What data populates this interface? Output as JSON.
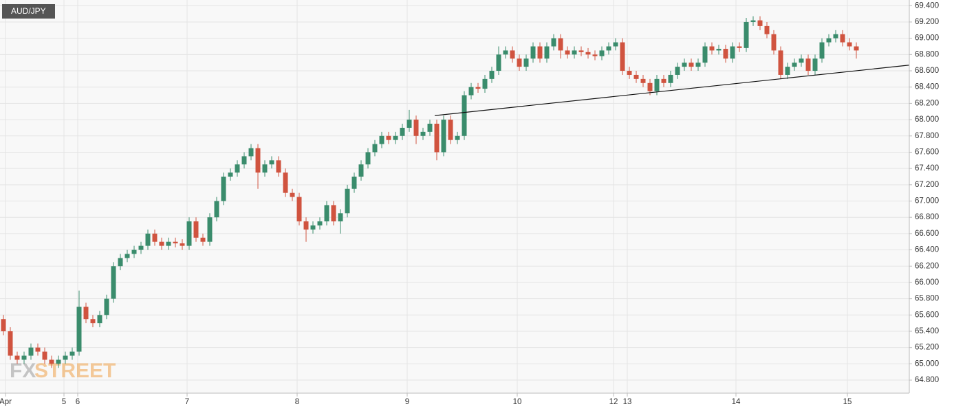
{
  "chart_data": {
    "type": "candlestick",
    "title": "AUD/JPY",
    "watermark": {
      "fx": "FX",
      "street": "STREET"
    },
    "x": [
      0,
      1,
      2,
      3,
      4,
      5,
      6,
      7,
      8,
      9,
      10,
      11,
      12,
      13,
      14,
      15,
      16,
      17,
      18,
      19,
      20,
      21,
      22,
      23,
      24,
      25,
      26,
      27,
      28,
      29,
      30,
      31,
      32,
      33,
      34,
      35,
      36,
      37,
      38,
      39,
      40,
      41,
      42,
      43,
      44,
      45,
      46,
      47,
      48,
      49,
      50,
      51,
      52,
      53,
      54,
      55,
      56,
      57,
      58,
      59,
      60,
      61,
      62,
      63,
      64,
      65,
      66,
      67,
      68,
      69,
      70,
      71,
      72,
      73,
      74,
      75,
      76,
      77,
      78,
      79,
      80,
      81,
      82,
      83,
      84,
      85,
      86,
      87,
      88,
      89,
      90,
      91,
      92,
      93,
      94,
      95,
      96,
      97,
      98,
      99,
      100,
      101,
      102,
      103,
      104,
      105,
      106,
      107,
      108,
      109,
      110,
      111,
      112,
      113,
      114,
      115,
      116,
      117,
      118,
      119,
      120,
      121,
      122,
      123,
      124
    ],
    "open": [
      65.55,
      65.4,
      65.1,
      65.05,
      65.1,
      65.2,
      65.15,
      65.05,
      65.0,
      65.05,
      65.1,
      65.15,
      65.7,
      65.55,
      65.5,
      65.6,
      65.8,
      66.2,
      66.3,
      66.35,
      66.4,
      66.45,
      66.6,
      66.5,
      66.45,
      66.5,
      66.48,
      66.45,
      66.75,
      66.55,
      66.5,
      66.8,
      67.0,
      67.3,
      67.35,
      67.45,
      67.55,
      67.65,
      67.35,
      67.45,
      67.5,
      67.35,
      67.1,
      67.05,
      66.75,
      66.65,
      66.7,
      66.75,
      66.95,
      66.75,
      66.85,
      67.15,
      67.3,
      67.45,
      67.6,
      67.7,
      67.8,
      67.75,
      67.8,
      67.9,
      68.0,
      67.8,
      67.85,
      67.95,
      67.6,
      68.0,
      67.75,
      67.8,
      68.3,
      68.4,
      68.38,
      68.5,
      68.6,
      68.8,
      68.85,
      68.75,
      68.65,
      68.75,
      68.9,
      68.75,
      68.9,
      69.0,
      68.85,
      68.8,
      68.85,
      68.83,
      68.8,
      68.78,
      68.85,
      68.9,
      68.95,
      68.6,
      68.55,
      68.5,
      68.45,
      68.35,
      68.5,
      68.45,
      68.55,
      68.65,
      68.7,
      68.65,
      68.7,
      68.9,
      68.85,
      68.87,
      68.75,
      68.9,
      68.88,
      69.2,
      69.22,
      69.15,
      69.05,
      68.85,
      68.55,
      68.65,
      68.7,
      68.75,
      68.6,
      68.75,
      68.95,
      69.0,
      69.05,
      68.95,
      68.9
    ],
    "high": [
      65.6,
      65.45,
      65.15,
      65.15,
      65.25,
      65.25,
      65.2,
      65.1,
      65.1,
      65.15,
      65.2,
      65.9,
      65.75,
      65.6,
      65.65,
      65.85,
      66.25,
      66.35,
      66.4,
      66.45,
      66.5,
      66.65,
      66.65,
      66.55,
      66.55,
      66.55,
      66.53,
      66.8,
      66.8,
      66.6,
      66.85,
      67.05,
      67.35,
      67.4,
      67.5,
      67.6,
      67.7,
      67.7,
      67.5,
      67.55,
      67.55,
      67.4,
      67.15,
      67.1,
      66.8,
      66.75,
      66.8,
      67.0,
      67.0,
      66.9,
      67.2,
      67.35,
      67.5,
      67.65,
      67.75,
      67.85,
      67.85,
      67.85,
      67.95,
      68.12,
      68.05,
      67.9,
      68.0,
      68.0,
      68.05,
      68.05,
      67.85,
      68.35,
      68.45,
      68.45,
      68.55,
      68.65,
      68.9,
      68.9,
      68.9,
      68.8,
      68.8,
      68.95,
      68.95,
      68.95,
      69.05,
      69.05,
      68.9,
      68.9,
      68.9,
      68.88,
      68.85,
      68.9,
      68.95,
      69.0,
      69.0,
      68.65,
      68.6,
      68.55,
      68.5,
      68.55,
      68.55,
      68.6,
      68.7,
      68.75,
      68.75,
      68.75,
      68.95,
      68.95,
      68.92,
      68.92,
      68.95,
      68.95,
      69.25,
      69.27,
      69.27,
      69.2,
      69.1,
      68.9,
      68.7,
      68.75,
      68.8,
      68.8,
      68.8,
      69.0,
      69.05,
      69.1,
      69.1,
      69.0,
      68.95
    ],
    "low": [
      65.35,
      65.05,
      65.0,
      65.0,
      65.05,
      65.1,
      65.0,
      64.95,
      64.95,
      65.0,
      65.05,
      65.1,
      65.5,
      65.45,
      65.45,
      65.55,
      65.75,
      66.15,
      66.25,
      66.3,
      66.35,
      66.4,
      66.45,
      66.4,
      66.4,
      66.43,
      66.4,
      66.4,
      66.5,
      66.45,
      66.45,
      66.75,
      66.95,
      67.25,
      67.3,
      67.4,
      67.5,
      67.15,
      67.3,
      67.4,
      67.3,
      67.05,
      67.0,
      66.7,
      66.5,
      66.6,
      66.65,
      66.7,
      66.7,
      66.6,
      66.8,
      67.1,
      67.25,
      67.4,
      67.55,
      67.65,
      67.7,
      67.7,
      67.75,
      67.85,
      67.7,
      67.75,
      67.8,
      67.5,
      67.55,
      67.7,
      67.7,
      67.75,
      68.25,
      68.33,
      68.33,
      68.45,
      68.55,
      68.75,
      68.7,
      68.6,
      68.6,
      68.7,
      68.7,
      68.7,
      68.85,
      68.75,
      68.75,
      68.75,
      68.78,
      68.75,
      68.73,
      68.73,
      68.8,
      68.85,
      68.55,
      68.5,
      68.45,
      68.4,
      68.3,
      68.3,
      68.4,
      68.4,
      68.5,
      68.6,
      68.6,
      68.6,
      68.65,
      68.8,
      68.8,
      68.7,
      68.7,
      68.83,
      68.83,
      69.15,
      69.1,
      69.0,
      68.8,
      68.5,
      68.5,
      68.6,
      68.65,
      68.55,
      68.55,
      68.7,
      68.9,
      68.95,
      68.9,
      68.85,
      68.75
    ],
    "close": [
      65.4,
      65.1,
      65.05,
      65.1,
      65.2,
      65.15,
      65.05,
      65.0,
      65.05,
      65.1,
      65.15,
      65.7,
      65.55,
      65.5,
      65.6,
      65.8,
      66.2,
      66.3,
      66.35,
      66.4,
      66.45,
      66.6,
      66.5,
      66.45,
      66.5,
      66.48,
      66.45,
      66.75,
      66.55,
      66.5,
      66.8,
      67.0,
      67.3,
      67.35,
      67.45,
      67.55,
      67.65,
      67.35,
      67.45,
      67.5,
      67.35,
      67.1,
      67.05,
      66.75,
      66.65,
      66.7,
      66.75,
      66.95,
      66.75,
      66.85,
      67.15,
      67.3,
      67.45,
      67.6,
      67.7,
      67.8,
      67.75,
      67.8,
      67.9,
      68.0,
      67.8,
      67.85,
      67.95,
      67.6,
      68.0,
      67.75,
      67.8,
      68.3,
      68.4,
      68.38,
      68.5,
      68.6,
      68.8,
      68.85,
      68.75,
      68.65,
      68.75,
      68.9,
      68.75,
      68.9,
      69.0,
      68.85,
      68.8,
      68.85,
      68.83,
      68.8,
      68.78,
      68.85,
      68.9,
      68.95,
      68.6,
      68.55,
      68.5,
      68.45,
      68.35,
      68.5,
      68.45,
      68.55,
      68.65,
      68.7,
      68.65,
      68.7,
      68.9,
      68.85,
      68.87,
      68.75,
      68.9,
      68.88,
      69.2,
      69.22,
      69.15,
      69.05,
      68.85,
      68.55,
      68.65,
      68.7,
      68.75,
      68.6,
      68.75,
      68.95,
      69.0,
      69.05,
      68.95,
      68.9,
      68.85
    ],
    "up_color": "#3a8c6c",
    "down_color": "#d0533f",
    "trendline": {
      "x": [
        62.7,
        131.7
      ],
      "y": [
        68.05,
        68.67
      ],
      "color": "#111111"
    },
    "xlim": [
      -0.5,
      131.7
    ],
    "ylim": [
      64.64,
      69.47
    ],
    "grid": true,
    "xticks": [
      {
        "value": 0.3,
        "label": "Apr"
      },
      {
        "value": 8.8,
        "label": "5"
      },
      {
        "value": 10.8,
        "label": "6"
      },
      {
        "value": 26.7,
        "label": "7"
      },
      {
        "value": 42.7,
        "label": "8"
      },
      {
        "value": 58.7,
        "label": "9"
      },
      {
        "value": 74.7,
        "label": "10"
      },
      {
        "value": 88.7,
        "label": "12"
      },
      {
        "value": 90.7,
        "label": "13"
      },
      {
        "value": 106.5,
        "label": "14"
      },
      {
        "value": 122.7,
        "label": "15"
      }
    ],
    "yticks": [
      {
        "value": 64.8,
        "label": "64.800"
      },
      {
        "value": 65.0,
        "label": "65.000"
      },
      {
        "value": 65.2,
        "label": "65.200"
      },
      {
        "value": 65.4,
        "label": "65.400"
      },
      {
        "value": 65.6,
        "label": "65.600"
      },
      {
        "value": 65.8,
        "label": "65.800"
      },
      {
        "value": 66.0,
        "label": "66.000"
      },
      {
        "value": 66.2,
        "label": "66.200"
      },
      {
        "value": 66.4,
        "label": "66.400"
      },
      {
        "value": 66.6,
        "label": "66.600"
      },
      {
        "value": 66.8,
        "label": "66.800"
      },
      {
        "value": 67.0,
        "label": "67.000"
      },
      {
        "value": 67.2,
        "label": "67.200"
      },
      {
        "value": 67.4,
        "label": "67.400"
      },
      {
        "value": 67.6,
        "label": "67.600"
      },
      {
        "value": 67.8,
        "label": "67.800"
      },
      {
        "value": 68.0,
        "label": "68.000"
      },
      {
        "value": 68.2,
        "label": "68.200"
      },
      {
        "value": 68.4,
        "label": "68.400"
      },
      {
        "value": 68.6,
        "label": "68.600"
      },
      {
        "value": 68.8,
        "label": "68.800"
      },
      {
        "value": 69.0,
        "label": "69.000"
      },
      {
        "value": 69.2,
        "label": "69.200"
      },
      {
        "value": 69.4,
        "label": "69.400"
      }
    ]
  }
}
